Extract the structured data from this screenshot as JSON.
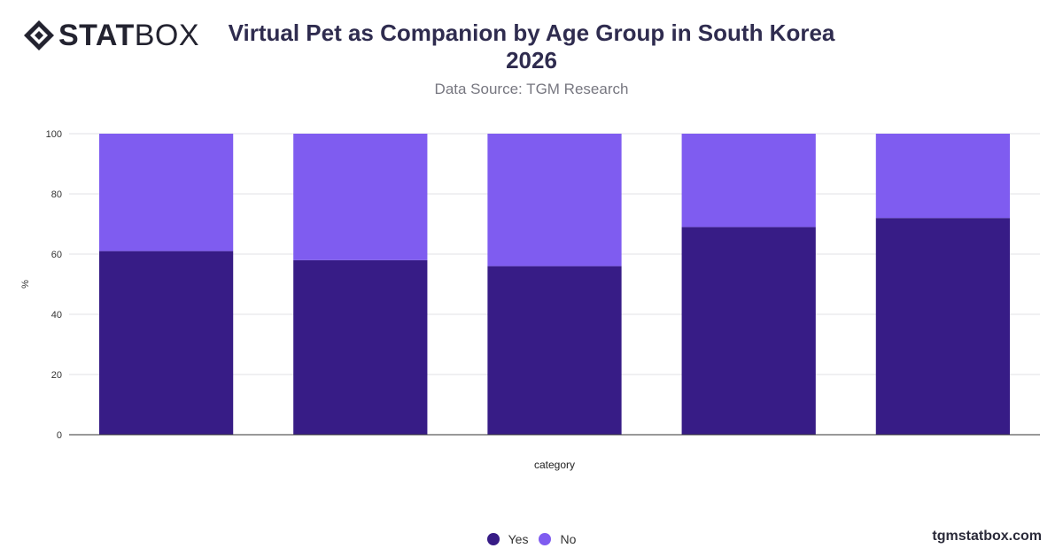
{
  "brand": {
    "logo_bold": "STAT",
    "logo_light": "BOX",
    "watermark": "tgmstatbox.com"
  },
  "header": {
    "title_line1": "Virtual Pet as Companion by Age Group in South Korea",
    "title_line2": "2026",
    "subtitle": "Data Source: TGM Research"
  },
  "colors": {
    "yes": "#371c86",
    "no": "#7f5cf0",
    "grid": "#e2e2e6",
    "axis": "#333333"
  },
  "chart_data": {
    "type": "bar",
    "stacked": true,
    "title": "Virtual Pet as Companion by Age Group in South Korea 2026",
    "subtitle": "Data Source: TGM Research",
    "xlabel": "category",
    "ylabel": "%",
    "ylim": [
      0,
      100
    ],
    "yticks": [
      0,
      20,
      40,
      60,
      80,
      100
    ],
    "grid": true,
    "legend_position": "bottom",
    "categories": [
      "",
      "",
      "",
      "",
      ""
    ],
    "series": [
      {
        "name": "Yes",
        "values": [
          61,
          58,
          56,
          69,
          72
        ]
      },
      {
        "name": "No",
        "values": [
          39,
          42,
          44,
          31,
          28
        ]
      }
    ]
  }
}
